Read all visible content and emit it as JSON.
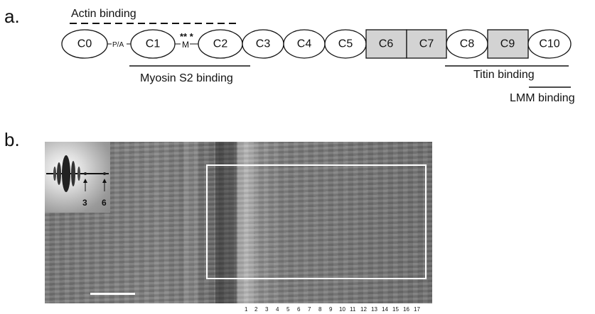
{
  "panel_a": {
    "label": "a.",
    "top_label": "Actin binding",
    "linker_pa": "P/A",
    "linker_m": "M",
    "phospho_marks": "** *",
    "domains": [
      {
        "name": "C0",
        "style": "ellipse"
      },
      {
        "name": "C1",
        "style": "ellipse"
      },
      {
        "name": "C2",
        "style": "ellipse"
      },
      {
        "name": "C3",
        "style": "ellipse"
      },
      {
        "name": "C4",
        "style": "ellipse"
      },
      {
        "name": "C5",
        "style": "ellipse"
      },
      {
        "name": "C6",
        "style": "box"
      },
      {
        "name": "C7",
        "style": "box"
      },
      {
        "name": "C8",
        "style": "ellipse"
      },
      {
        "name": "C9",
        "style": "box"
      },
      {
        "name": "C10",
        "style": "ellipse"
      }
    ],
    "myosin_label": "Myosin S2 binding",
    "titin_label": "Titin binding",
    "lmm_label": "LMM binding"
  },
  "panel_b": {
    "label": "b.",
    "inset_arrows": [
      "3",
      "6"
    ],
    "stripe_numbers": [
      "1",
      "2",
      "3",
      "4",
      "5",
      "6",
      "7",
      "8",
      "9",
      "10",
      "11",
      "12",
      "13",
      "14",
      "15",
      "16",
      "17"
    ]
  }
}
